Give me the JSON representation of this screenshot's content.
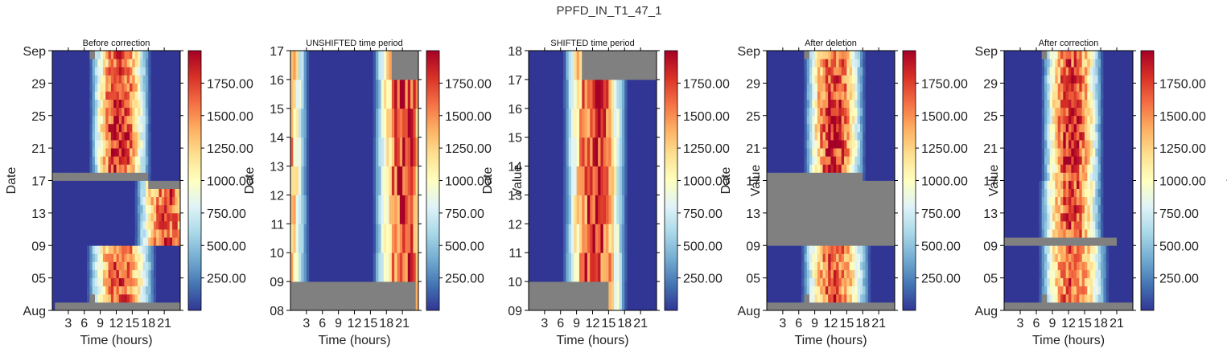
{
  "figure": {
    "suptitle": "PPFD_IN_T1_47_1"
  },
  "chart_data": [
    {
      "type": "heatmap",
      "title": "Before correction",
      "xlabel": "Time (hours)",
      "ylabel": "Date",
      "xticks": [
        "3",
        "6",
        "9",
        "12",
        "15",
        "18",
        "21"
      ],
      "yticks": [
        "Aug",
        "05",
        "09",
        "13",
        "17",
        "21",
        "25",
        "29",
        "Sep"
      ],
      "colorbar_label": "",
      "colorbar_ticks": [
        "250.00",
        "500.00",
        "750.00",
        "1000.00",
        "1250.00",
        "1500.00",
        "1750.00"
      ],
      "colormap": "RdYlBu_r",
      "vmin": 0,
      "vmax": 2000,
      "missing_color": "#808080",
      "row_profiles": [
        {
          "days": "Aug 01 - Aug 08",
          "dawn_hour": 6.5,
          "peak_hour": 12.5,
          "dusk_hour": 19.5,
          "peak_ppfd": 1650
        },
        {
          "days": "Aug 09 - Aug 16",
          "dawn_hour": 16,
          "peak_hour": 22,
          "dusk_hour": 24,
          "peak_ppfd": 1700,
          "note": "shifted by ~9 h"
        },
        {
          "days": "Aug 17 - Aug 31",
          "dawn_hour": 7,
          "peak_hour": 12.5,
          "dusk_hour": 18.5,
          "peak_ppfd": 1850
        }
      ]
    },
    {
      "type": "heatmap",
      "title": "UNSHIFTED time period",
      "xlabel": "Time (hours)",
      "ylabel": "Date",
      "xticks": [
        "3",
        "6",
        "9",
        "12",
        "15",
        "18",
        "21"
      ],
      "yticks": [
        "08",
        "09",
        "10",
        "11",
        "12",
        "13",
        "14",
        "15",
        "16",
        "17"
      ],
      "colorbar_label": "Value",
      "colorbar_ticks": [
        "250.00",
        "500.00",
        "750.00",
        "1000.00",
        "1250.00",
        "1500.00",
        "1750.00"
      ],
      "colormap": "RdYlBu_r",
      "vmin": 0,
      "vmax": 2000,
      "missing_color": "#808080"
    },
    {
      "type": "heatmap",
      "title": "SHIFTED time period",
      "xlabel": "Time (hours)",
      "ylabel": "Date",
      "xticks": [
        "3",
        "6",
        "9",
        "12",
        "15",
        "18",
        "21"
      ],
      "yticks": [
        "09",
        "10",
        "11",
        "12",
        "13",
        "14",
        "15",
        "16",
        "17",
        "18"
      ],
      "colorbar_label": "Value",
      "colorbar_ticks": [
        "250.00",
        "500.00",
        "750.00",
        "1000.00",
        "1250.00",
        "1500.00",
        "1750.00"
      ],
      "colormap": "RdYlBu_r",
      "vmin": 0,
      "vmax": 2000,
      "missing_color": "#808080"
    },
    {
      "type": "heatmap",
      "title": "After deletion",
      "xlabel": "Time (hours)",
      "ylabel": "Date",
      "xticks": [
        "3",
        "6",
        "9",
        "12",
        "15",
        "18",
        "21"
      ],
      "yticks": [
        "Aug",
        "05",
        "09",
        "13",
        "17",
        "21",
        "25",
        "29",
        "Sep"
      ],
      "colorbar_label": "Value",
      "colorbar_ticks": [
        "250.00",
        "500.00",
        "750.00",
        "1000.00",
        "1250.00",
        "1500.00",
        "1750.00"
      ],
      "colormap": "RdYlBu_r",
      "vmin": 0,
      "vmax": 2000,
      "missing_color": "#808080"
    },
    {
      "type": "heatmap",
      "title": "After correction",
      "xlabel": "Time (hours)",
      "ylabel": "",
      "xticks": [
        "3",
        "6",
        "9",
        "12",
        "15",
        "18",
        "21"
      ],
      "yticks": [
        "Aug",
        "05",
        "09",
        "13",
        "17",
        "21",
        "25",
        "29",
        "Sep"
      ],
      "colorbar_label": "Value",
      "colorbar_ticks": [
        "250.00",
        "500.00",
        "750.00",
        "1000.00",
        "1250.00",
        "1500.00",
        "1750.00"
      ],
      "colormap": "RdYlBu_r",
      "vmin": 0,
      "vmax": 2000,
      "missing_color": "#808080"
    }
  ]
}
